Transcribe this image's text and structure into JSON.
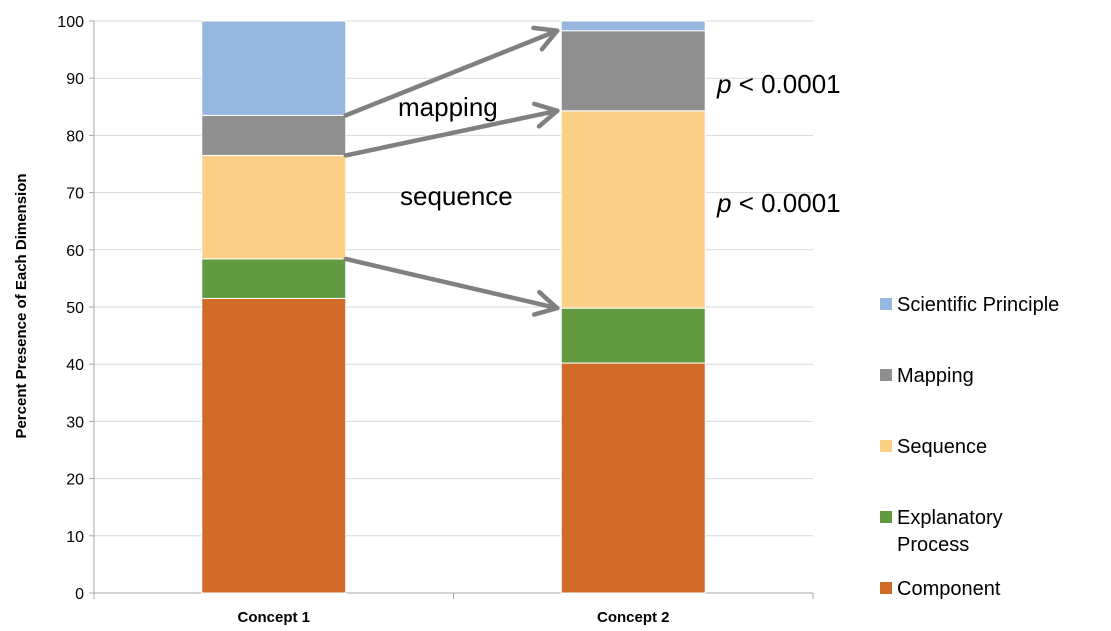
{
  "chart_data": {
    "type": "bar",
    "stacked": true,
    "categories": [
      "Concept 1",
      "Concept 2"
    ],
    "series": [
      {
        "name": "Component",
        "color": "#D26B2A",
        "values": [
          51.5,
          40.2
        ]
      },
      {
        "name": "Explanatory Process",
        "color": "#629A40",
        "values": [
          6.9,
          9.6
        ]
      },
      {
        "name": "Sequence",
        "color": "#FDD087",
        "values": [
          18.1,
          34.5
        ]
      },
      {
        "name": "Mapping",
        "color": "#8F8F8F",
        "values": [
          7.0,
          14.0
        ]
      },
      {
        "name": "Scientific Principle",
        "color": "#97B8DE",
        "values": [
          16.5,
          1.7
        ]
      }
    ],
    "legend_order": [
      "Scientific Principle",
      "Mapping",
      "Sequence",
      "Explanatory Process",
      "Component"
    ],
    "legend_labels": {
      "Scientific Principle": [
        "Scientific Principle"
      ],
      "Mapping": [
        "Mapping"
      ],
      "Sequence": [
        "Sequence"
      ],
      "Explanatory Process": [
        "Explanatory",
        "Process"
      ],
      "Component": [
        "Component"
      ]
    },
    "ylabel": "Percent Presence of Each Dimension",
    "xlabel": "",
    "ylim": [
      0,
      100
    ],
    "yticks": [
      "0",
      "10",
      "20",
      "30",
      "40",
      "50",
      "60",
      "70",
      "80",
      "90",
      "100"
    ],
    "legend_position": "right",
    "grid": true,
    "annotations": {
      "mapping_label": "mapping",
      "sequence_label": "sequence",
      "p_symbol": "p",
      "p_rest": " < 0.0001"
    },
    "arrows": [
      {
        "from": [
          "Concept 1",
          83.5
        ],
        "to": [
          "Concept 2",
          98.3
        ]
      },
      {
        "from": [
          "Concept 1",
          76.5
        ],
        "to": [
          "Concept 2",
          84.3
        ]
      },
      {
        "from": [
          "Concept 1",
          58.4
        ],
        "to": [
          "Concept 2",
          49.8
        ]
      }
    ],
    "arrow_color": "#808080"
  }
}
